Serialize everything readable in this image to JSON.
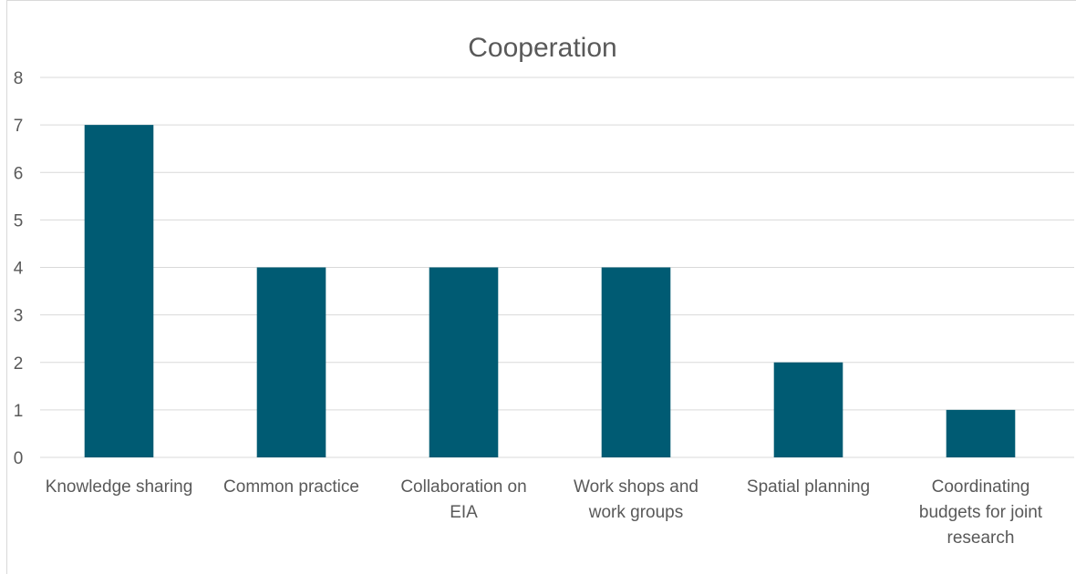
{
  "chart_data": {
    "type": "bar",
    "title": "Cooperation",
    "xlabel": "",
    "ylabel": "",
    "categories": [
      "Knowledge sharing",
      "Common practice",
      "Collaboration on EIA",
      "Work shops and work groups",
      "Spatial planning",
      "Coordinating budgets for joint research"
    ],
    "category_lines": [
      [
        "Knowledge sharing"
      ],
      [
        "Common practice"
      ],
      [
        "Collaboration on",
        "EIA"
      ],
      [
        "Work shops and",
        "work groups"
      ],
      [
        "Spatial planning"
      ],
      [
        "Coordinating",
        "budgets for joint",
        "research"
      ]
    ],
    "values": [
      7,
      4,
      4,
      4,
      2,
      1
    ],
    "ylim": [
      0,
      8
    ],
    "yticks": [
      "0",
      "1",
      "2",
      "3",
      "4",
      "5",
      "6",
      "7",
      "8"
    ],
    "grid": true,
    "legend": "none",
    "colors": {
      "bar": "#005B73",
      "grid": "#D9D9D9",
      "axis_text": "#595959",
      "border": "#D9D9D9"
    }
  }
}
